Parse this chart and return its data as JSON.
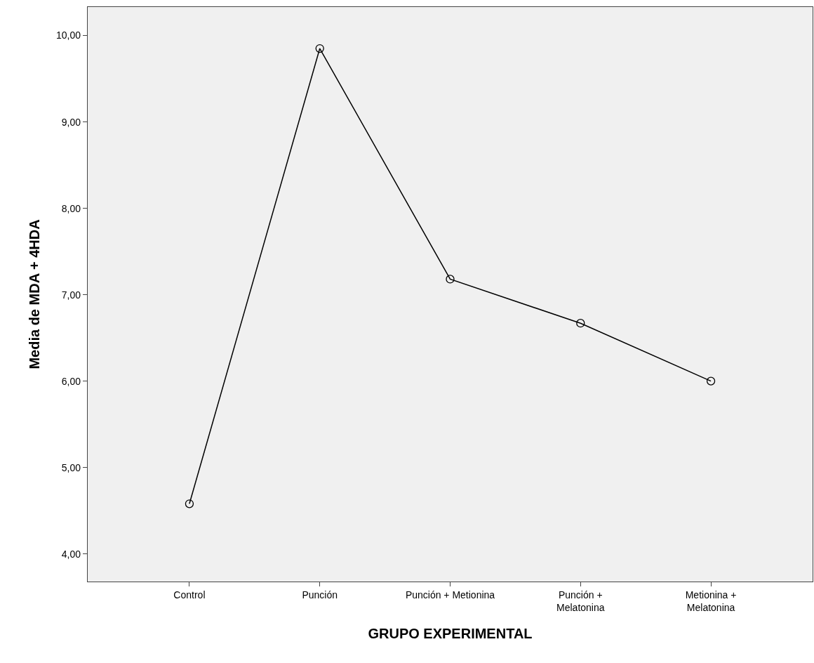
{
  "chart_data": {
    "type": "line",
    "xlabel": "GRUPO EXPERIMENTAL",
    "ylabel": "Media de MDA + 4HDA",
    "categories": [
      "Control",
      "Punción",
      "Punción + Metionina",
      "Punción +\nMelatonina",
      "Metionina +\nMelatonina"
    ],
    "series": [
      {
        "color": "#000000",
        "values": [
          4.58,
          9.85,
          7.18,
          6.67,
          6.0
        ]
      }
    ],
    "ylim": [
      3.68,
      10.33
    ],
    "yticks": [
      {
        "value": 4,
        "label": "4,00"
      },
      {
        "value": 5,
        "label": "5,00"
      },
      {
        "value": 6,
        "label": "6,00"
      },
      {
        "value": 7,
        "label": "7,00"
      },
      {
        "value": 8,
        "label": "8,00"
      },
      {
        "value": 9,
        "label": "9,00"
      },
      {
        "value": 10,
        "label": "10,00"
      }
    ],
    "marker": "circle",
    "line_style": "solid"
  }
}
